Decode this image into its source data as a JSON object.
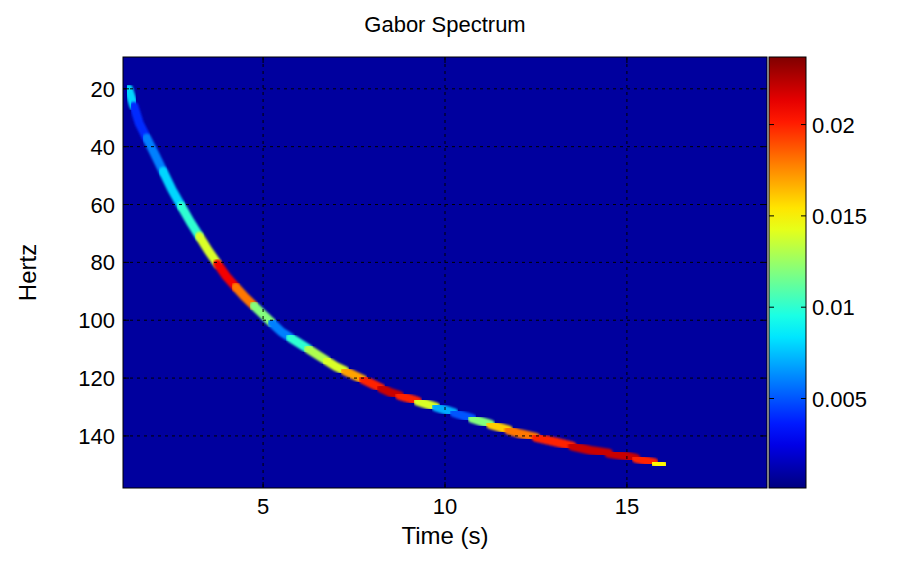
{
  "chart_data": {
    "type": "heatmap",
    "title": "Gabor Spectrum",
    "x_label": "Time (s)",
    "y_label": "Hertz",
    "xlim": [
      1.15,
      18.85
    ],
    "xticks": [
      5,
      10,
      15
    ],
    "ylim": [
      9,
      158
    ],
    "yticks": [
      20,
      40,
      60,
      80,
      100,
      120,
      140
    ],
    "grid": true,
    "colorbar_lim": [
      0.0001,
      0.0237
    ],
    "colorbar_ticks": [
      0.005,
      0.01,
      0.015,
      0.02
    ],
    "background_value": 0.0008,
    "ridge": {
      "x": [
        1.3,
        1.6,
        2,
        2.5,
        3,
        3.5,
        4,
        4.5,
        5,
        5.5,
        6,
        6.5,
        7,
        7.5,
        8,
        8.5,
        9,
        9.5,
        10,
        10.5,
        11,
        11.5,
        12,
        13,
        14,
        15,
        15.5,
        16
      ],
      "y": [
        20,
        32,
        42,
        55,
        66,
        76,
        85,
        92,
        98,
        104,
        108,
        112,
        116,
        119,
        122,
        125,
        127,
        129,
        131,
        133,
        135,
        137,
        139,
        142,
        145,
        147,
        148.5,
        150
      ],
      "values": [
        0.008,
        0.004,
        0.006,
        0.008,
        0.01,
        0.014,
        0.021,
        0.018,
        0.012,
        0.006,
        0.01,
        0.013,
        0.014,
        0.017,
        0.02,
        0.022,
        0.02,
        0.014,
        0.007,
        0.005,
        0.012,
        0.016,
        0.018,
        0.02,
        0.022,
        0.022,
        0.02,
        0.015
      ]
    },
    "bands": {
      "y": [
        47,
        63,
        97
      ],
      "values": [
        0.003,
        0.0025,
        0.0015
      ]
    }
  }
}
